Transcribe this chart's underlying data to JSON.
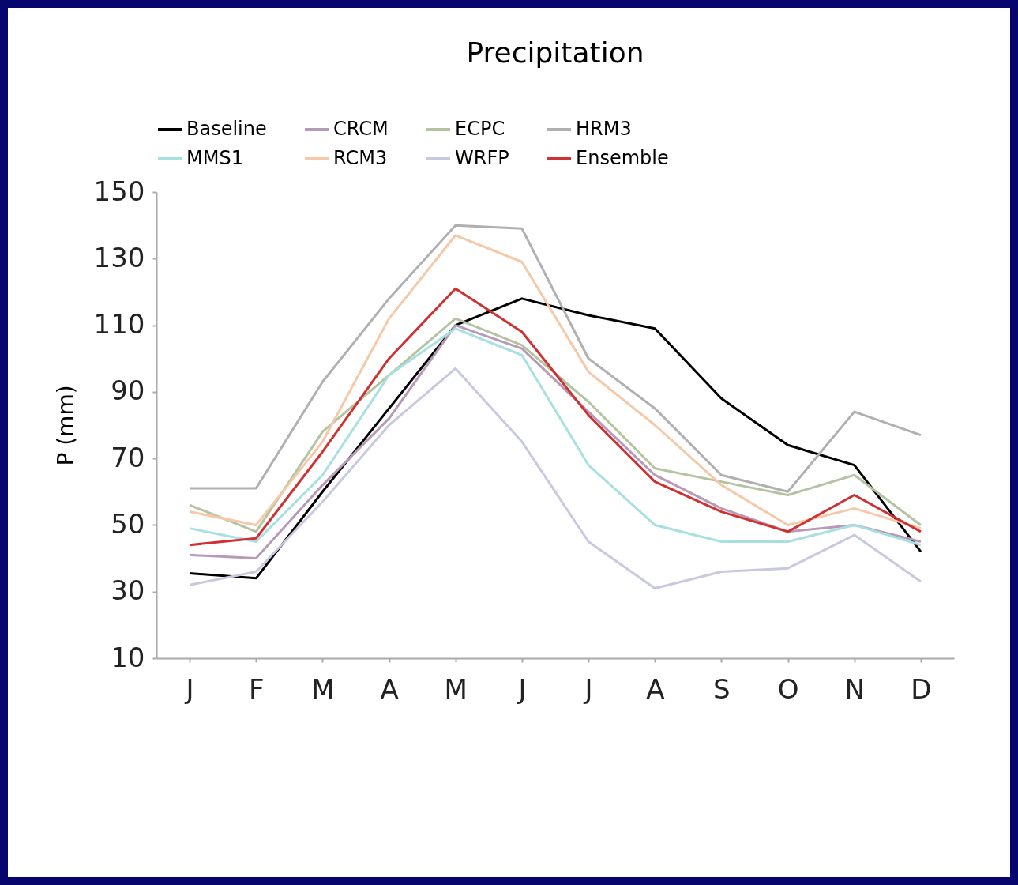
{
  "chart_data": {
    "type": "line",
    "title": "Precipitation",
    "ylabel": "P (mm)",
    "categories": [
      "J",
      "F",
      "M",
      "A",
      "M",
      "J",
      "J",
      "A",
      "S",
      "O",
      "N",
      "D"
    ],
    "ylim": [
      10,
      150
    ],
    "yticks": [
      10,
      30,
      50,
      70,
      90,
      110,
      130,
      150
    ],
    "grid": false,
    "legend": "top",
    "line_style": "solid",
    "series": [
      {
        "name": "Baseline",
        "color": "#000000",
        "values": [
          35.5,
          34,
          60,
          85,
          110,
          118,
          113,
          109,
          88,
          74,
          68,
          42
        ]
      },
      {
        "name": "CRCM",
        "color": "#b89ab8",
        "values": [
          41,
          40,
          62,
          82,
          110,
          103,
          84,
          65,
          55,
          48,
          50,
          45
        ]
      },
      {
        "name": "ECPC",
        "color": "#b5c4a0",
        "values": [
          56,
          48,
          78,
          95,
          112,
          104,
          87,
          67,
          63,
          59,
          65,
          50
        ]
      },
      {
        "name": "HRM3",
        "color": "#b0b0b0",
        "values": [
          61,
          61,
          93,
          118,
          140,
          139,
          100,
          85,
          65,
          60,
          84,
          77
        ]
      },
      {
        "name": "MMS1",
        "color": "#a6e0e0",
        "values": [
          49,
          45,
          65,
          95,
          109,
          101,
          68,
          50,
          45,
          45,
          50,
          44
        ]
      },
      {
        "name": "RCM3",
        "color": "#f5c8a8",
        "values": [
          54,
          50,
          75,
          112,
          137,
          129,
          96,
          80,
          62,
          50,
          55,
          49
        ]
      },
      {
        "name": "WRFP",
        "color": "#c8c8e0",
        "values": [
          32,
          36,
          57,
          80,
          97,
          75,
          45,
          31,
          36,
          37,
          47,
          33
        ]
      },
      {
        "name": "Ensemble",
        "color": "#d03030",
        "values": [
          44,
          46,
          72,
          100,
          121,
          108,
          83,
          63,
          54,
          48,
          59,
          48
        ]
      }
    ]
  }
}
